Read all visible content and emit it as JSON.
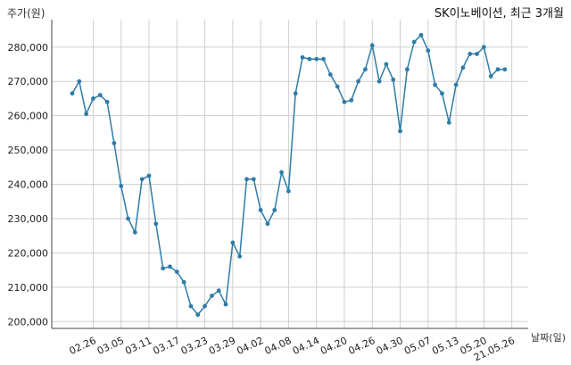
{
  "chart_data": {
    "type": "line",
    "title": "SK이노베이션, 최근 3개월",
    "ylabel": "주가(원)",
    "xlabel": "날짜(일)",
    "ylim": [
      198000,
      288000
    ],
    "yticks": [
      200000,
      210000,
      220000,
      230000,
      240000,
      250000,
      260000,
      270000,
      280000
    ],
    "ytick_labels": [
      "200,000",
      "210,000",
      "220,000",
      "230,000",
      "240,000",
      "250,000",
      "260,000",
      "270,000",
      "280,000"
    ],
    "xtick_labels": [
      "02.26",
      "03.05",
      "03.11",
      "03.17",
      "03.23",
      "03.29",
      "04.02",
      "04.08",
      "04.14",
      "04.20",
      "04.26",
      "04.30",
      "05.07",
      "05.13",
      "05.20",
      "21.05.26"
    ],
    "xtick_index": [
      3,
      7,
      11,
      15,
      19,
      23,
      27,
      31,
      35,
      39,
      43,
      47,
      51,
      55,
      59,
      63
    ],
    "grid": true,
    "series": [
      {
        "color": "#2e7ca8",
        "values": [
          266500,
          270000,
          260500,
          265000,
          266000,
          264000,
          252000,
          239500,
          230000,
          226000,
          241500,
          242500,
          228500,
          215500,
          216000,
          214500,
          211500,
          204500,
          202000,
          204500,
          207500,
          209000,
          205000,
          223000,
          219000,
          241500,
          241500,
          232500,
          228500,
          232500,
          243500,
          238000,
          266500,
          277000,
          276500,
          276500,
          276500,
          272000,
          268500,
          264000,
          264500,
          270000,
          273500,
          280500,
          270000,
          275000,
          270500,
          255500,
          273500,
          281500,
          283500,
          279000,
          269000,
          266500,
          258000,
          269000,
          274000,
          278000,
          278000,
          280000,
          271500,
          273500,
          273500
        ]
      }
    ]
  }
}
